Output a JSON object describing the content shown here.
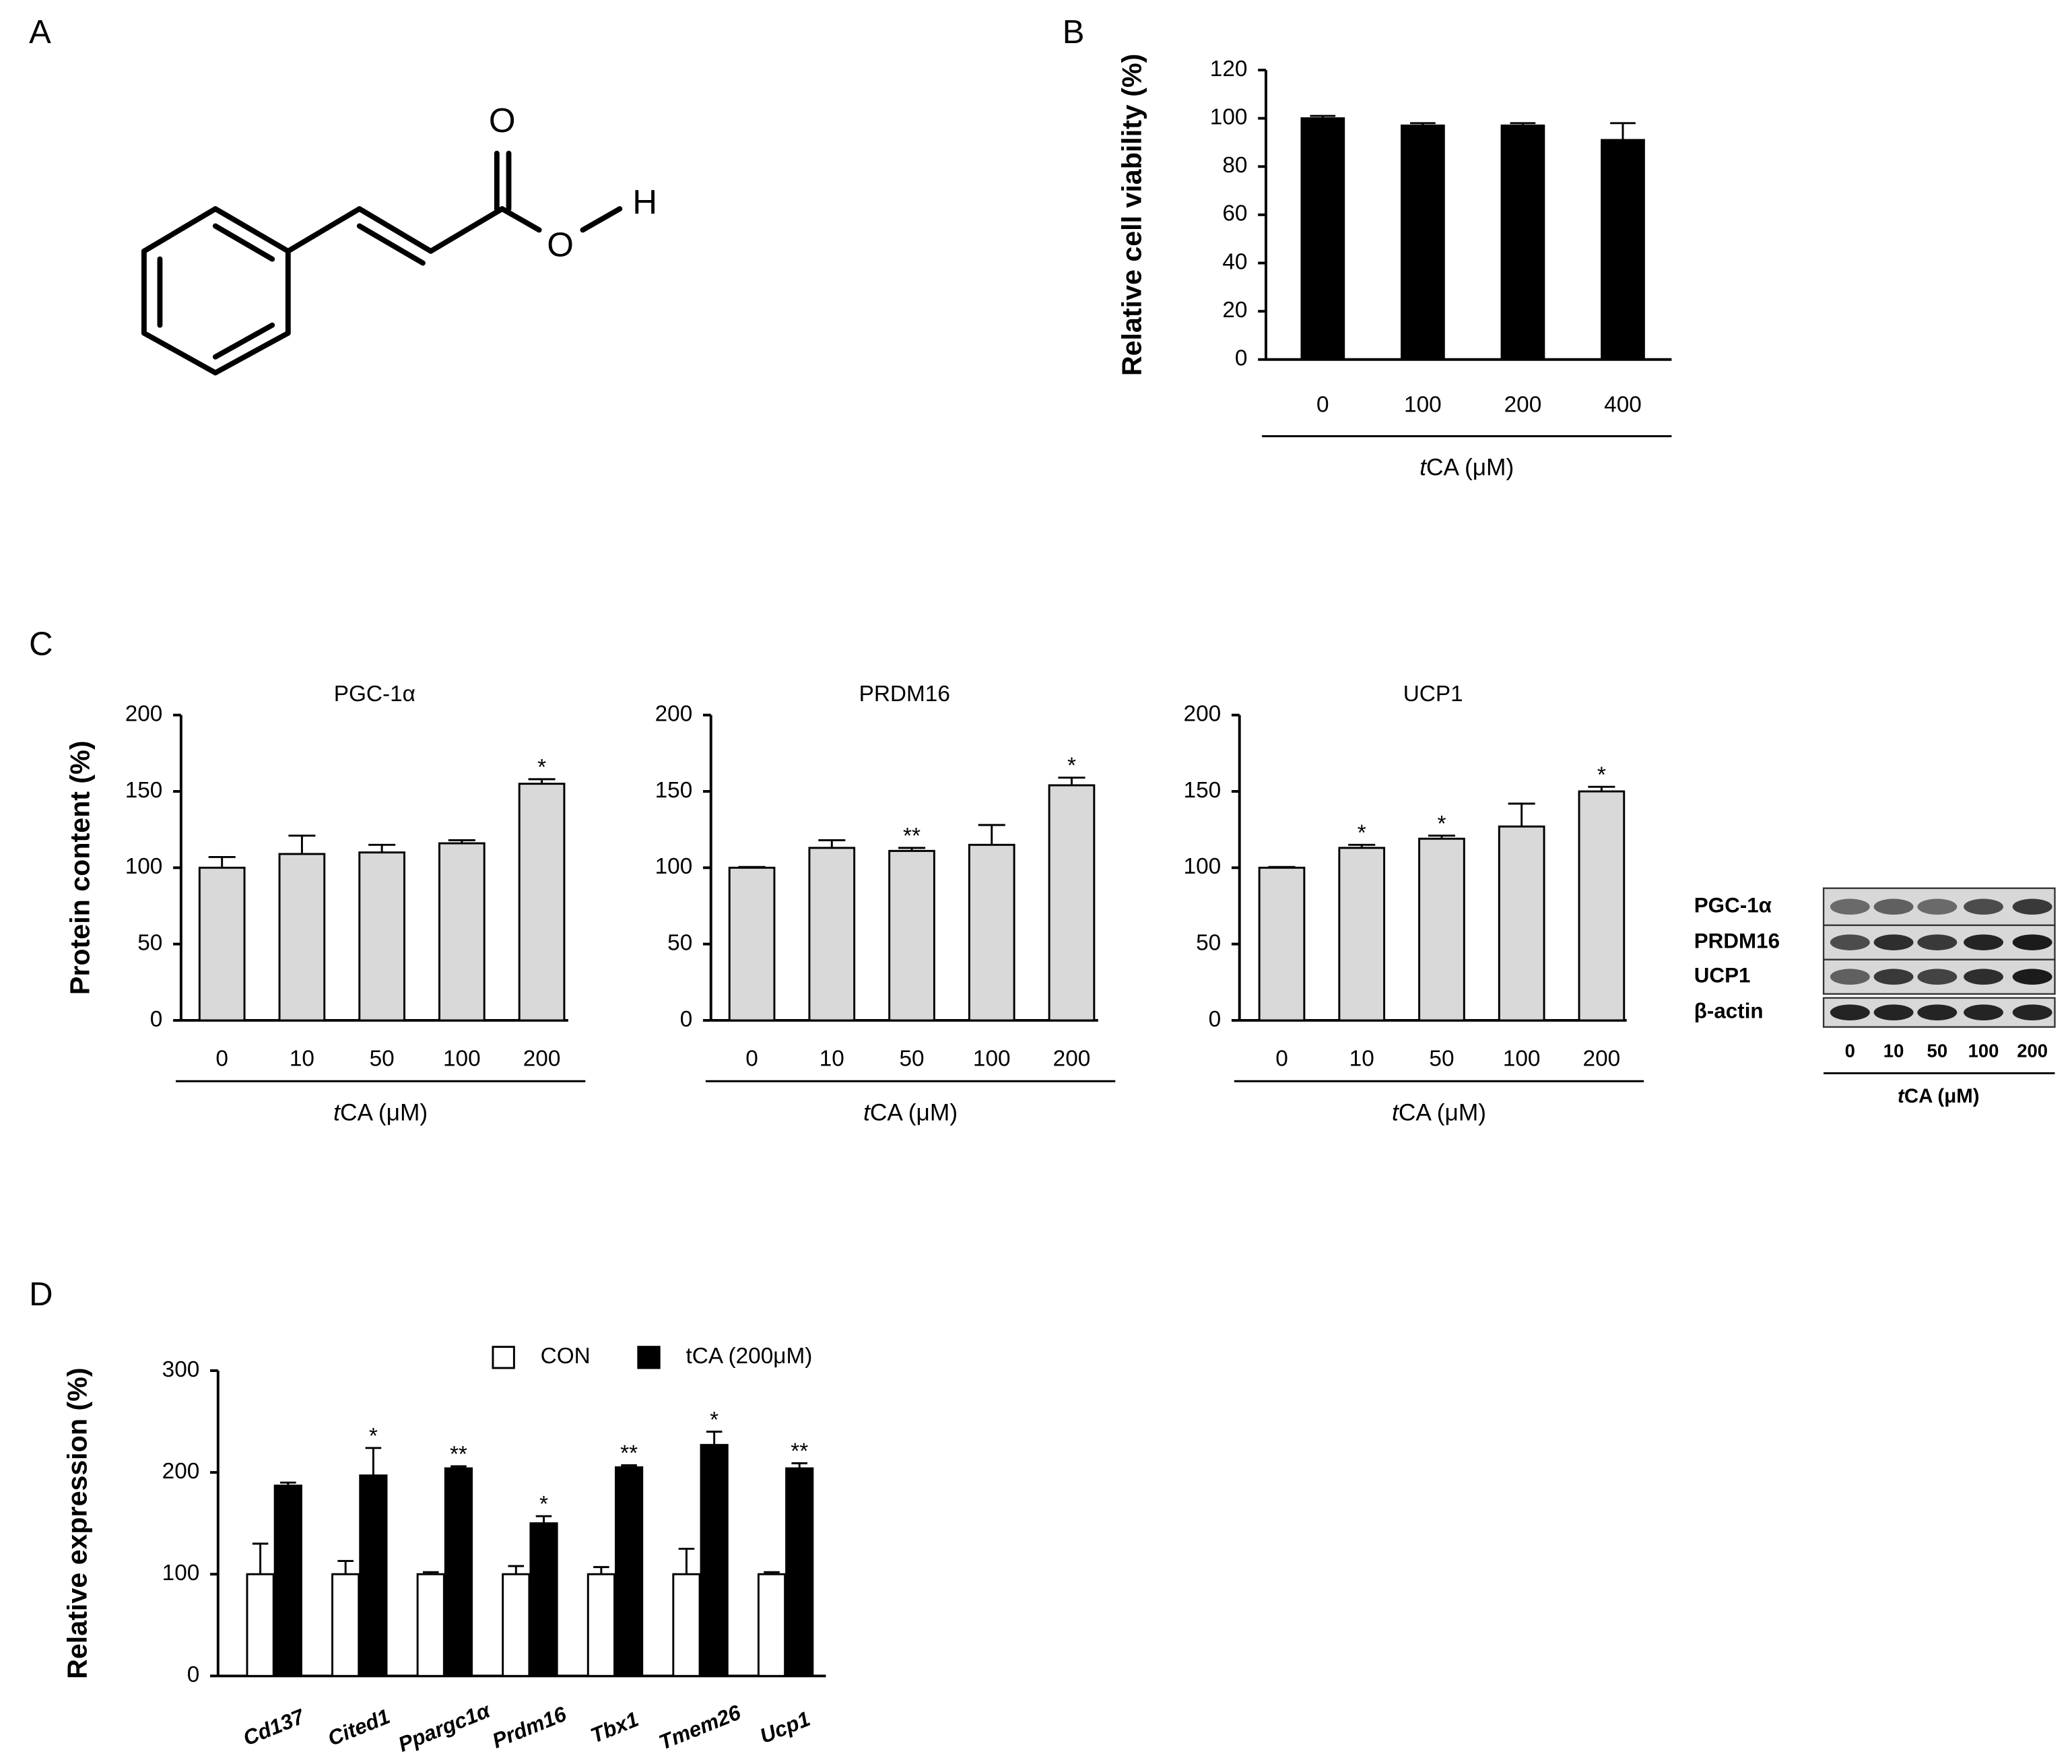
{
  "panel_labels": [
    "A",
    "B",
    "C",
    "D"
  ],
  "structure": {
    "atoms": [
      "O",
      "O",
      "H"
    ]
  },
  "chart_data": [
    {
      "type": "bar",
      "ylabel": "Relative cell viability (%)",
      "xlabel": [
        "t",
        "CA  (μM)"
      ],
      "categories": [
        "0",
        "100",
        "200",
        "400"
      ],
      "values": [
        100,
        97,
        97,
        91
      ],
      "errors": [
        1,
        1,
        1,
        7
      ],
      "color": "#000000",
      "ylim": [
        0,
        120
      ],
      "yticks": [
        0,
        20,
        40,
        60,
        80,
        100,
        120
      ]
    },
    {
      "type": "bar",
      "title": "PGC-1α",
      "ylabel": "Protein content (%)",
      "xlabel": [
        "t",
        "CA  (μM)"
      ],
      "categories": [
        "0",
        "10",
        "50",
        "100",
        "200"
      ],
      "values": [
        100,
        109,
        110,
        116,
        155
      ],
      "errors": [
        7,
        12,
        5,
        2,
        3
      ],
      "annotations": [
        null,
        null,
        null,
        null,
        "*"
      ],
      "color": "#d9d9d9",
      "ylim": [
        0,
        200
      ],
      "yticks": [
        0,
        50,
        100,
        150,
        200
      ]
    },
    {
      "type": "bar",
      "title": "PRDM16",
      "xlabel": [
        "t",
        "CA  (μM)"
      ],
      "categories": [
        "0",
        "10",
        "50",
        "100",
        "200"
      ],
      "values": [
        100,
        113,
        111,
        115,
        154
      ],
      "errors": [
        0.5,
        5,
        2,
        13,
        5
      ],
      "annotations": [
        null,
        null,
        "**",
        null,
        "*"
      ],
      "color": "#d9d9d9",
      "ylim": [
        0,
        200
      ],
      "yticks": [
        0,
        50,
        100,
        150,
        200
      ]
    },
    {
      "type": "bar",
      "title": "UCP1",
      "xlabel": [
        "t",
        "CA  (μM)"
      ],
      "categories": [
        "0",
        "10",
        "50",
        "100",
        "200"
      ],
      "values": [
        100,
        113,
        119,
        127,
        150
      ],
      "errors": [
        0.5,
        2,
        2,
        15,
        3
      ],
      "annotations": [
        null,
        "*",
        "*",
        null,
        "*"
      ],
      "color": "#d9d9d9",
      "ylim": [
        0,
        200
      ],
      "yticks": [
        0,
        50,
        100,
        150,
        200
      ]
    },
    {
      "type": "bar",
      "ylabel": "Relative expression (%)",
      "categories": [
        "Cd137",
        "Cited1",
        "Ppargc1α",
        "Prdm16",
        "Tbx1",
        "Tmem26",
        "Ucp1"
      ],
      "series": [
        {
          "name": "CON",
          "color": "#ffffff",
          "values": [
            100,
            100,
            100,
            100,
            100,
            100,
            100
          ],
          "errors": [
            30,
            13,
            2,
            8,
            7,
            25,
            2
          ],
          "annotations": [
            null,
            null,
            null,
            null,
            null,
            null,
            null
          ]
        },
        {
          "name": "tCA (200μM)",
          "color": "#000000",
          "values": [
            187,
            197,
            204,
            150,
            205,
            227,
            204
          ],
          "errors": [
            3,
            27,
            2,
            7,
            2,
            13,
            5
          ],
          "annotations": [
            null,
            "*",
            "**",
            "*",
            "**",
            "*",
            "**"
          ]
        }
      ],
      "ylim": [
        0,
        300
      ],
      "yticks": [
        0,
        100,
        200,
        300
      ]
    }
  ],
  "blot": {
    "rows": [
      "PGC-1α",
      "PRDM16",
      "UCP1",
      "β-actin"
    ],
    "lanes": [
      0,
      10,
      50,
      100,
      200
    ],
    "xlabel": [
      "t",
      "CA  (μM)"
    ]
  }
}
